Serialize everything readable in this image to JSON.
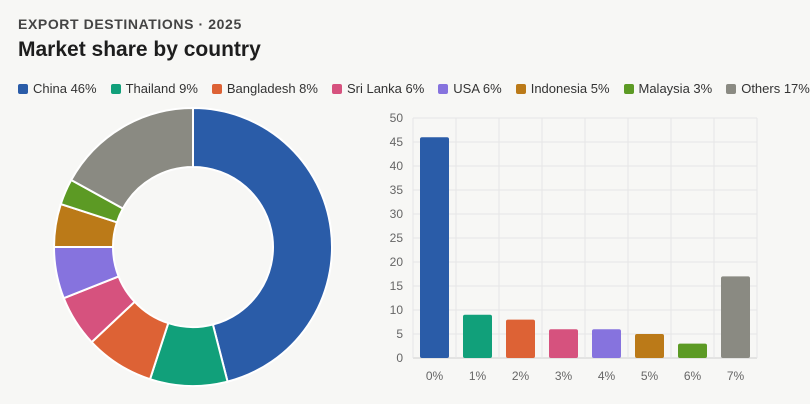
{
  "header": {
    "eyebrow": "EXPORT DESTINATIONS · 2025",
    "title": "Market share by country"
  },
  "legend": [
    {
      "label": "China 46%",
      "color": "#2a5ca8"
    },
    {
      "label": "Thailand 9%",
      "color": "#11a07a"
    },
    {
      "label": "Bangladesh 8%",
      "color": "#dd6235"
    },
    {
      "label": "Sri Lanka 6%",
      "color": "#d6527e"
    },
    {
      "label": "USA 6%",
      "color": "#8673de"
    },
    {
      "label": "Indonesia 5%",
      "color": "#bb7a18"
    },
    {
      "label": "Malaysia 3%",
      "color": "#5c9a24"
    },
    {
      "label": "Others 17%",
      "color": "#8a8a82"
    }
  ],
  "chart_data": [
    {
      "type": "pie",
      "variant": "donut",
      "categories": [
        "China",
        "Thailand",
        "Bangladesh",
        "Sri Lanka",
        "USA",
        "Indonesia",
        "Malaysia",
        "Others"
      ],
      "values": [
        46,
        9,
        8,
        6,
        6,
        5,
        3,
        17
      ],
      "colors": [
        "#2a5ca8",
        "#11a07a",
        "#dd6235",
        "#d6527e",
        "#8673de",
        "#bb7a18",
        "#5c9a24",
        "#8a8a82"
      ]
    },
    {
      "type": "bar",
      "categories": [
        "0%",
        "1%",
        "2%",
        "3%",
        "4%",
        "5%",
        "6%",
        "7%"
      ],
      "values": [
        46,
        9,
        8,
        6,
        6,
        5,
        3,
        17
      ],
      "colors": [
        "#2a5ca8",
        "#11a07a",
        "#dd6235",
        "#d6527e",
        "#8673de",
        "#bb7a18",
        "#5c9a24",
        "#8a8a82"
      ],
      "ylim": [
        0,
        50
      ],
      "yticks": [
        0,
        5,
        10,
        15,
        20,
        25,
        30,
        35,
        40,
        45,
        50
      ],
      "grid": true
    }
  ]
}
